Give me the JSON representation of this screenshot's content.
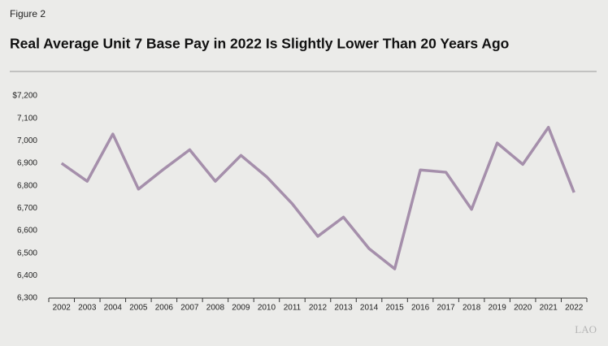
{
  "chart_data": {
    "type": "line",
    "figure_label": "Figure 2",
    "title": "Real Average Unit 7 Base Pay in 2022 Is Slightly Lower Than 20 Years Ago",
    "source_logo": "LAO",
    "categories": [
      "2002",
      "2003",
      "2004",
      "2005",
      "2006",
      "2007",
      "2008",
      "2009",
      "2010",
      "2011",
      "2012",
      "2013",
      "2014",
      "2015",
      "2016",
      "2017",
      "2018",
      "2019",
      "2020",
      "2021",
      "2022"
    ],
    "values": [
      6900,
      6820,
      7030,
      6785,
      6875,
      6960,
      6820,
      6935,
      6840,
      6720,
      6575,
      6660,
      6520,
      6430,
      6870,
      6860,
      6695,
      6990,
      6895,
      7060,
      6770
    ],
    "color": "#a58fab",
    "ylim": [
      6300,
      7200
    ],
    "yticks": [
      {
        "value": 6300,
        "label": "6,300"
      },
      {
        "value": 6400,
        "label": "6,400"
      },
      {
        "value": 6500,
        "label": "6,500"
      },
      {
        "value": 6600,
        "label": "6,600"
      },
      {
        "value": 6700,
        "label": "6,700"
      },
      {
        "value": 6800,
        "label": "6,800"
      },
      {
        "value": 6900,
        "label": "6,900"
      },
      {
        "value": 7000,
        "label": "7,000"
      },
      {
        "value": 7100,
        "label": "7,100"
      },
      {
        "value": 7200,
        "label": "$7,200"
      }
    ],
    "grid": false
  }
}
